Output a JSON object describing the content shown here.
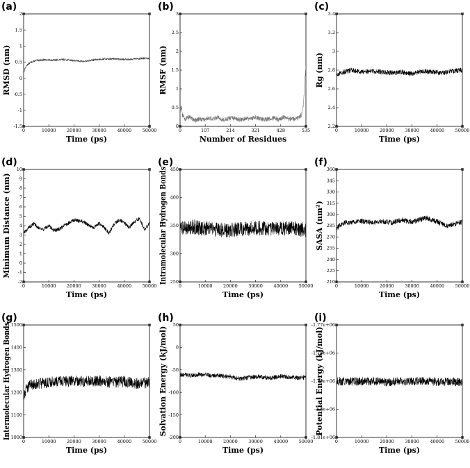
{
  "chart_data": [
    {
      "panel_label": "(a)",
      "type": "line",
      "xlabel": "Time (ps)",
      "ylabel": "RMSD (nm)",
      "xlim": [
        0,
        50000
      ],
      "ylim": [
        -1.5,
        2
      ],
      "xticks": [
        "0",
        "10000",
        "20000",
        "30000",
        "40000",
        "50000"
      ],
      "yticks": [
        "-1.5",
        "-1",
        "-0.5",
        "0",
        "0.5",
        "1",
        "1.5",
        "2"
      ],
      "line_color": "#444444",
      "series": [
        {
          "x": [
            0,
            500,
            1500,
            3000,
            5000,
            8000,
            12000,
            16000,
            20000,
            24000,
            28000,
            32000,
            36000,
            40000,
            44000,
            48000,
            50000
          ],
          "values": [
            0.15,
            0.3,
            0.42,
            0.5,
            0.55,
            0.57,
            0.56,
            0.58,
            0.55,
            0.52,
            0.57,
            0.6,
            0.6,
            0.58,
            0.6,
            0.62,
            0.6
          ],
          "noise": 0.03
        }
      ]
    },
    {
      "panel_label": "(b)",
      "type": "line",
      "xlabel": "Number of Residues",
      "ylabel": "RMSF (nm)",
      "xlim": [
        0,
        535
      ],
      "ylim": [
        0,
        3
      ],
      "xticks": [
        "0",
        "107",
        "214",
        "321",
        "428",
        "535"
      ],
      "yticks": [
        "0",
        "0.5",
        "1",
        "1.5",
        "2",
        "2.5",
        "3"
      ],
      "line_color": "#777777",
      "series": [
        {
          "x": [
            0,
            5,
            10,
            20,
            40,
            60,
            80,
            100,
            120,
            140,
            160,
            180,
            200,
            220,
            240,
            260,
            280,
            300,
            320,
            340,
            360,
            380,
            400,
            420,
            440,
            460,
            480,
            500,
            515,
            525,
            530,
            535
          ],
          "values": [
            0.35,
            0.55,
            0.3,
            0.2,
            0.25,
            0.15,
            0.2,
            0.18,
            0.22,
            0.2,
            0.25,
            0.18,
            0.2,
            0.22,
            0.2,
            0.18,
            0.22,
            0.2,
            0.25,
            0.2,
            0.18,
            0.2,
            0.22,
            0.18,
            0.25,
            0.2,
            0.2,
            0.22,
            0.3,
            0.6,
            1.2,
            1.6
          ],
          "noise": 0.06
        }
      ]
    },
    {
      "panel_label": "(c)",
      "type": "line",
      "xlabel": "Time (ps)",
      "ylabel": "Rg (nm)",
      "xlim": [
        0,
        50000
      ],
      "ylim": [
        2.2,
        3.4
      ],
      "xticks": [
        "0",
        "10000",
        "20000",
        "30000",
        "40000",
        "50000"
      ],
      "yticks": [
        "2.2",
        "2.4",
        "2.6",
        "2.8",
        "3",
        "3.2",
        "3.4"
      ],
      "line_color": "#000000",
      "series": [
        {
          "x": [
            0,
            3000,
            6000,
            10000,
            14000,
            18000,
            22000,
            26000,
            30000,
            34000,
            38000,
            42000,
            46000,
            50000
          ],
          "values": [
            2.75,
            2.78,
            2.8,
            2.78,
            2.79,
            2.78,
            2.77,
            2.78,
            2.76,
            2.79,
            2.78,
            2.77,
            2.79,
            2.8
          ],
          "noise": 0.025
        }
      ]
    },
    {
      "panel_label": "(d)",
      "type": "line",
      "xlabel": "Time (ps)",
      "ylabel": "Minimum Distance (nm)",
      "xlim": [
        0,
        50000
      ],
      "ylim": [
        -2,
        10
      ],
      "xticks": [
        "0",
        "10000",
        "20000",
        "30000",
        "40000",
        "50000"
      ],
      "yticks": [
        "-2",
        "-1",
        "0",
        "1",
        "2",
        "3",
        "4",
        "5",
        "6",
        "7",
        "8",
        "9",
        "10"
      ],
      "line_color": "#000000",
      "series": [
        {
          "x": [
            0,
            2000,
            4000,
            6000,
            8000,
            10000,
            12000,
            14000,
            16000,
            18000,
            20000,
            22000,
            24000,
            26000,
            28000,
            30000,
            32000,
            34000,
            36000,
            38000,
            40000,
            42000,
            44000,
            46000,
            48000,
            50000
          ],
          "values": [
            3.2,
            3.8,
            4.2,
            3.8,
            3.6,
            4.0,
            3.5,
            3.6,
            4.0,
            4.3,
            4.6,
            4.5,
            4.4,
            4.0,
            3.8,
            4.3,
            3.8,
            3.2,
            4.2,
            4.6,
            4.3,
            3.8,
            4.4,
            4.8,
            3.6,
            4.2
          ],
          "noise": 0.2
        }
      ]
    },
    {
      "panel_label": "(e)",
      "type": "line",
      "xlabel": "Time (ps)",
      "ylabel": "Intramolecular Hydrogen Bonds",
      "xlim": [
        0,
        50000
      ],
      "ylim": [
        250,
        450
      ],
      "xticks": [
        "0",
        "10000",
        "20000",
        "30000",
        "40000",
        "50000"
      ],
      "yticks": [
        "250",
        "300",
        "350",
        "400",
        "450"
      ],
      "line_color": "#000000",
      "series": [
        {
          "x": [
            0,
            5000,
            10000,
            15000,
            20000,
            25000,
            30000,
            35000,
            40000,
            45000,
            50000
          ],
          "values": [
            345,
            348,
            345,
            343,
            342,
            344,
            346,
            345,
            345,
            346,
            342
          ],
          "noise": 13
        }
      ]
    },
    {
      "panel_label": "(f)",
      "type": "line",
      "xlabel": "Time (ps)",
      "ylabel": "SASA (nm²)",
      "xlim": [
        0,
        50000
      ],
      "ylim": [
        210,
        360
      ],
      "xticks": [
        "0",
        "10000",
        "20000",
        "30000",
        "40000",
        "50000"
      ],
      "yticks": [
        "210",
        "225",
        "240",
        "255",
        "270",
        "285",
        "300",
        "315",
        "330",
        "345",
        "360"
      ],
      "line_color": "#000000",
      "series": [
        {
          "x": [
            0,
            1000,
            3000,
            6000,
            10000,
            14000,
            18000,
            22000,
            26000,
            30000,
            34000,
            36000,
            40000,
            44000,
            48000,
            50000
          ],
          "values": [
            278,
            285,
            289,
            290,
            291,
            289,
            291,
            289,
            293,
            290,
            294,
            295,
            290,
            285,
            288,
            290
          ],
          "noise": 3.5
        }
      ]
    },
    {
      "panel_label": "(g)",
      "type": "line",
      "xlabel": "Time (ps)",
      "ylabel": "Intermolecular Hydrogen Bonds",
      "xlim": [
        0,
        50000
      ],
      "ylim": [
        1000,
        1500
      ],
      "xticks": [
        "0",
        "10000",
        "20000",
        "30000",
        "40000",
        "50000"
      ],
      "yticks": [
        "1000",
        "1100",
        "1200",
        "1300",
        "1400",
        "1500"
      ],
      "line_color": "#000000",
      "series": [
        {
          "x": [
            0,
            1000,
            3000,
            6000,
            10000,
            15000,
            20000,
            25000,
            30000,
            35000,
            40000,
            45000,
            50000
          ],
          "values": [
            1180,
            1220,
            1235,
            1240,
            1245,
            1250,
            1250,
            1248,
            1252,
            1245,
            1248,
            1240,
            1245
          ],
          "noise": 25
        }
      ]
    },
    {
      "panel_label": "(h)",
      "type": "line",
      "xlabel": "Time (ps)",
      "ylabel": "Solvation Energy (kJ/mol)",
      "xlim": [
        0,
        50000
      ],
      "ylim": [
        -200,
        50
      ],
      "xticks": [
        "0",
        "10000",
        "20000",
        "30000",
        "40000",
        "50000"
      ],
      "yticks": [
        "-200",
        "-150",
        "-100",
        "-50",
        "0",
        "50"
      ],
      "line_color": "#000000",
      "series": [
        {
          "x": [
            0,
            4000,
            8000,
            12000,
            16000,
            20000,
            24000,
            28000,
            32000,
            36000,
            40000,
            44000,
            48000,
            50000
          ],
          "values": [
            -60,
            -62,
            -60,
            -62,
            -63,
            -65,
            -70,
            -66,
            -65,
            -68,
            -64,
            -66,
            -68,
            -65
          ],
          "noise": 5
        }
      ]
    },
    {
      "panel_label": "(i)",
      "type": "line",
      "xlabel": "Time (ps)",
      "ylabel": "Potential Energy (kJ/mol)",
      "xlim": [
        0,
        50000
      ],
      "ylim": [
        -1810000,
        -1770000
      ],
      "xticks": [
        "0",
        "10000",
        "20000",
        "30000",
        "40000",
        "50000"
      ],
      "yticks": [
        "-1.81e+06",
        "-1.8e+06",
        "-1.79e+06",
        "-1.78e+06",
        "-1.77e+06"
      ],
      "line_color": "#000000",
      "series": [
        {
          "x": [
            0,
            5000,
            10000,
            15000,
            20000,
            25000,
            30000,
            35000,
            40000,
            45000,
            50000
          ],
          "values": [
            -1790000,
            -1790200,
            -1790000,
            -1790100,
            -1790300,
            -1790000,
            -1790100,
            -1790000,
            -1790200,
            -1790100,
            -1790300
          ],
          "noise": 1500
        }
      ]
    }
  ]
}
